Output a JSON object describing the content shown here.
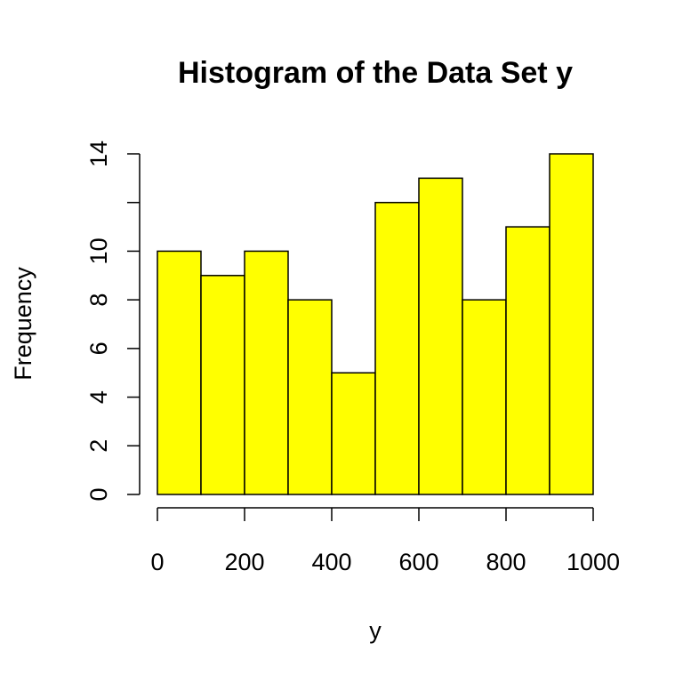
{
  "chart_data": {
    "type": "bar",
    "title": "Histogram of the Data Set y",
    "xlabel": "y",
    "ylabel": "Frequency",
    "bins": [
      {
        "from": 0,
        "to": 100,
        "count": 10
      },
      {
        "from": 100,
        "to": 200,
        "count": 9
      },
      {
        "from": 200,
        "to": 300,
        "count": 10
      },
      {
        "from": 300,
        "to": 400,
        "count": 8
      },
      {
        "from": 400,
        "to": 500,
        "count": 5
      },
      {
        "from": 500,
        "to": 600,
        "count": 12
      },
      {
        "from": 600,
        "to": 700,
        "count": 13
      },
      {
        "from": 700,
        "to": 800,
        "count": 8
      },
      {
        "from": 800,
        "to": 900,
        "count": 11
      },
      {
        "from": 900,
        "to": 1000,
        "count": 14
      }
    ],
    "xlim": [
      0,
      1000
    ],
    "ylim": [
      0,
      14
    ],
    "x_ticks": [
      0,
      200,
      400,
      600,
      800,
      1000
    ],
    "y_ticks": [
      0,
      2,
      4,
      6,
      8,
      10,
      12,
      14
    ],
    "y_tick_labels_shown": [
      "0",
      "2",
      "4",
      "6",
      "8",
      "10",
      "",
      "14"
    ],
    "bar_color": "#ffff00",
    "grid": false,
    "legend": "none"
  }
}
